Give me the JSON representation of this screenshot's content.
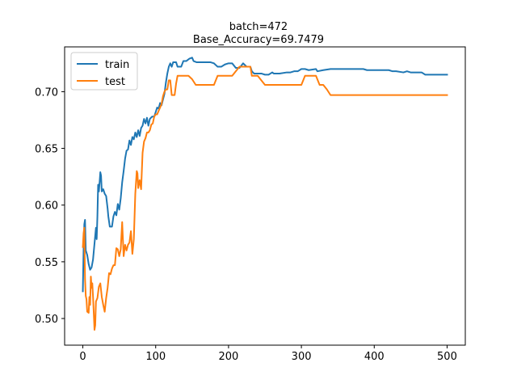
{
  "chart_data": {
    "type": "line",
    "title_lines": [
      "batch=472",
      "Base_Accuracy=69.7479"
    ],
    "xlabel": "",
    "ylabel": "",
    "xlim": [
      -25,
      525
    ],
    "ylim": [
      0.4765,
      0.7395
    ],
    "x_ticks": [
      0,
      100,
      200,
      300,
      400,
      500
    ],
    "x_tick_labels": [
      "0",
      "100",
      "200",
      "300",
      "400",
      "500"
    ],
    "y_ticks": [
      0.5,
      0.55,
      0.6,
      0.65,
      0.7
    ],
    "y_tick_labels": [
      "0.50",
      "0.55",
      "0.60",
      "0.65",
      "0.70"
    ],
    "grid": false,
    "legend_position": "top-left",
    "series": [
      {
        "name": "train",
        "color": "#1f77b4",
        "points": [
          [
            0,
            0.524
          ],
          [
            1,
            0.56
          ],
          [
            2,
            0.583
          ],
          [
            3,
            0.587
          ],
          [
            4,
            0.56
          ],
          [
            6,
            0.556
          ],
          [
            8,
            0.548
          ],
          [
            10,
            0.543
          ],
          [
            12,
            0.545
          ],
          [
            14,
            0.552
          ],
          [
            16,
            0.566
          ],
          [
            18,
            0.58
          ],
          [
            19,
            0.57
          ],
          [
            20,
            0.59
          ],
          [
            21,
            0.618
          ],
          [
            22,
            0.612
          ],
          [
            23,
            0.62
          ],
          [
            24,
            0.629
          ],
          [
            25,
            0.626
          ],
          [
            26,
            0.612
          ],
          [
            28,
            0.614
          ],
          [
            30,
            0.61
          ],
          [
            32,
            0.608
          ],
          [
            34,
            0.597
          ],
          [
            35,
            0.59
          ],
          [
            37,
            0.581
          ],
          [
            40,
            0.581
          ],
          [
            42,
            0.59
          ],
          [
            44,
            0.594
          ],
          [
            46,
            0.591
          ],
          [
            48,
            0.601
          ],
          [
            50,
            0.596
          ],
          [
            52,
            0.606
          ],
          [
            54,
            0.62
          ],
          [
            56,
            0.63
          ],
          [
            58,
            0.641
          ],
          [
            60,
            0.648
          ],
          [
            62,
            0.649
          ],
          [
            64,
            0.657
          ],
          [
            66,
            0.653
          ],
          [
            68,
            0.66
          ],
          [
            70,
            0.658
          ],
          [
            72,
            0.664
          ],
          [
            74,
            0.66
          ],
          [
            76,
            0.666
          ],
          [
            78,
            0.661
          ],
          [
            80,
            0.668
          ],
          [
            82,
            0.67
          ],
          [
            84,
            0.676
          ],
          [
            86,
            0.672
          ],
          [
            88,
            0.677
          ],
          [
            90,
            0.67
          ],
          [
            92,
            0.676
          ],
          [
            95,
            0.678
          ],
          [
            98,
            0.678
          ],
          [
            100,
            0.682
          ],
          [
            102,
            0.686
          ],
          [
            104,
            0.685
          ],
          [
            106,
            0.69
          ],
          [
            108,
            0.688
          ],
          [
            110,
            0.693
          ],
          [
            112,
            0.698
          ],
          [
            114,
            0.708
          ],
          [
            116,
            0.716
          ],
          [
            118,
            0.722
          ],
          [
            120,
            0.725
          ],
          [
            122,
            0.722
          ],
          [
            124,
            0.726
          ],
          [
            128,
            0.726
          ],
          [
            130,
            0.722
          ],
          [
            135,
            0.722
          ],
          [
            138,
            0.727
          ],
          [
            142,
            0.727
          ],
          [
            146,
            0.729
          ],
          [
            150,
            0.73
          ],
          [
            152,
            0.727
          ],
          [
            156,
            0.726
          ],
          [
            160,
            0.726
          ],
          [
            175,
            0.726
          ],
          [
            180,
            0.725
          ],
          [
            185,
            0.722
          ],
          [
            190,
            0.722
          ],
          [
            195,
            0.724
          ],
          [
            200,
            0.725
          ],
          [
            205,
            0.725
          ],
          [
            210,
            0.721
          ],
          [
            215,
            0.721
          ],
          [
            220,
            0.725
          ],
          [
            225,
            0.722
          ],
          [
            230,
            0.722
          ],
          [
            232,
            0.718
          ],
          [
            235,
            0.716
          ],
          [
            240,
            0.716
          ],
          [
            245,
            0.716
          ],
          [
            250,
            0.715
          ],
          [
            255,
            0.715
          ],
          [
            260,
            0.717
          ],
          [
            262,
            0.716
          ],
          [
            270,
            0.716
          ],
          [
            280,
            0.717
          ],
          [
            285,
            0.717
          ],
          [
            290,
            0.718
          ],
          [
            295,
            0.718
          ],
          [
            300,
            0.72
          ],
          [
            305,
            0.72
          ],
          [
            310,
            0.719
          ],
          [
            320,
            0.72
          ],
          [
            322,
            0.718
          ],
          [
            330,
            0.719
          ],
          [
            340,
            0.72
          ],
          [
            360,
            0.72
          ],
          [
            385,
            0.72
          ],
          [
            390,
            0.719
          ],
          [
            420,
            0.719
          ],
          [
            425,
            0.718
          ],
          [
            430,
            0.718
          ],
          [
            440,
            0.717
          ],
          [
            445,
            0.718
          ],
          [
            450,
            0.717
          ],
          [
            465,
            0.717
          ],
          [
            470,
            0.715
          ],
          [
            500,
            0.715
          ],
          [
            520,
            0.715
          ]
        ]
      },
      {
        "name": "test",
        "color": "#ff7f0e",
        "points": [
          [
            0,
            0.563
          ],
          [
            1,
            0.575
          ],
          [
            2,
            0.58
          ],
          [
            3,
            0.535
          ],
          [
            4,
            0.52
          ],
          [
            5,
            0.517
          ],
          [
            6,
            0.506
          ],
          [
            8,
            0.505
          ],
          [
            9,
            0.519
          ],
          [
            10,
            0.512
          ],
          [
            11,
            0.537
          ],
          [
            12,
            0.527
          ],
          [
            13,
            0.531
          ],
          [
            14,
            0.519
          ],
          [
            15,
            0.505
          ],
          [
            16,
            0.49
          ],
          [
            17,
            0.494
          ],
          [
            18,
            0.515
          ],
          [
            20,
            0.518
          ],
          [
            22,
            0.528
          ],
          [
            24,
            0.531
          ],
          [
            26,
            0.519
          ],
          [
            28,
            0.512
          ],
          [
            30,
            0.506
          ],
          [
            32,
            0.518
          ],
          [
            34,
            0.527
          ],
          [
            36,
            0.54
          ],
          [
            38,
            0.539
          ],
          [
            40,
            0.544
          ],
          [
            42,
            0.547
          ],
          [
            44,
            0.547
          ],
          [
            46,
            0.562
          ],
          [
            48,
            0.561
          ],
          [
            50,
            0.555
          ],
          [
            52,
            0.561
          ],
          [
            54,
            0.585
          ],
          [
            56,
            0.555
          ],
          [
            58,
            0.565
          ],
          [
            60,
            0.56
          ],
          [
            62,
            0.565
          ],
          [
            64,
            0.567
          ],
          [
            66,
            0.577
          ],
          [
            68,
            0.557
          ],
          [
            70,
            0.57
          ],
          [
            72,
            0.61
          ],
          [
            74,
            0.63
          ],
          [
            75,
            0.628
          ],
          [
            76,
            0.615
          ],
          [
            78,
            0.622
          ],
          [
            80,
            0.614
          ],
          [
            82,
            0.646
          ],
          [
            84,
            0.656
          ],
          [
            86,
            0.659
          ],
          [
            88,
            0.664
          ],
          [
            90,
            0.664
          ],
          [
            92,
            0.666
          ],
          [
            94,
            0.671
          ],
          [
            96,
            0.672
          ],
          [
            98,
            0.678
          ],
          [
            100,
            0.68
          ],
          [
            102,
            0.68
          ],
          [
            104,
            0.683
          ],
          [
            106,
            0.686
          ],
          [
            108,
            0.689
          ],
          [
            110,
            0.696
          ],
          [
            112,
            0.7
          ],
          [
            114,
            0.702
          ],
          [
            116,
            0.702
          ],
          [
            118,
            0.71
          ],
          [
            120,
            0.71
          ],
          [
            122,
            0.697
          ],
          [
            126,
            0.697
          ],
          [
            128,
            0.707
          ],
          [
            130,
            0.714
          ],
          [
            132,
            0.714
          ],
          [
            135,
            0.714
          ],
          [
            140,
            0.714
          ],
          [
            145,
            0.714
          ],
          [
            150,
            0.711
          ],
          [
            155,
            0.706
          ],
          [
            160,
            0.706
          ],
          [
            170,
            0.706
          ],
          [
            180,
            0.706
          ],
          [
            185,
            0.714
          ],
          [
            190,
            0.714
          ],
          [
            200,
            0.714
          ],
          [
            205,
            0.714
          ],
          [
            210,
            0.718
          ],
          [
            215,
            0.722
          ],
          [
            220,
            0.722
          ],
          [
            225,
            0.722
          ],
          [
            230,
            0.722
          ],
          [
            232,
            0.714
          ],
          [
            240,
            0.714
          ],
          [
            245,
            0.71
          ],
          [
            250,
            0.706
          ],
          [
            260,
            0.706
          ],
          [
            270,
            0.706
          ],
          [
            280,
            0.706
          ],
          [
            290,
            0.706
          ],
          [
            300,
            0.706
          ],
          [
            305,
            0.714
          ],
          [
            310,
            0.714
          ],
          [
            320,
            0.714
          ],
          [
            325,
            0.706
          ],
          [
            330,
            0.706
          ],
          [
            335,
            0.702
          ],
          [
            340,
            0.697
          ],
          [
            345,
            0.697
          ],
          [
            350,
            0.697
          ],
          [
            360,
            0.697
          ],
          [
            370,
            0.697
          ],
          [
            380,
            0.697
          ],
          [
            390,
            0.697
          ],
          [
            400,
            0.697
          ],
          [
            420,
            0.697
          ],
          [
            440,
            0.697
          ],
          [
            460,
            0.697
          ],
          [
            480,
            0.697
          ],
          [
            500,
            0.697
          ],
          [
            520,
            0.697
          ]
        ]
      }
    ]
  }
}
